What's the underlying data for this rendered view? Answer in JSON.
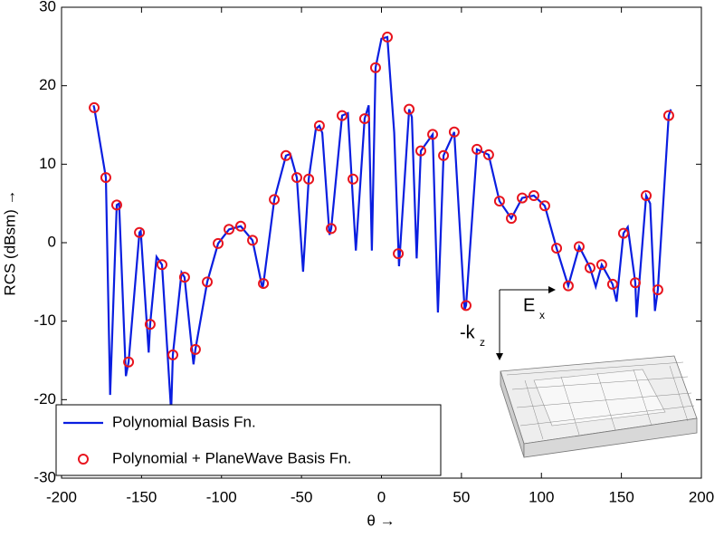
{
  "chart_data": {
    "type": "line",
    "x_label": "θ →",
    "y_label": "RCS (dBsm) →",
    "xlim": [
      -200,
      200
    ],
    "ylim": [
      -30,
      30
    ],
    "xticks": [
      -200,
      -150,
      -100,
      -50,
      0,
      50,
      100,
      150,
      200
    ],
    "yticks": [
      -30,
      -20,
      -10,
      0,
      10,
      20,
      30
    ],
    "legend": "lower left",
    "annotations": [
      {
        "text": "E"
      },
      {
        "text": "x"
      },
      {
        "text": "-k"
      },
      {
        "text": "z"
      }
    ],
    "series": [
      {
        "name": "Polynomial Basis Fn.",
        "type": "line",
        "color": "#0a1ee0",
        "x": [
          -180,
          -179.6,
          -172.3,
          -169.6,
          -165.5,
          -164,
          -159.8,
          -158.1,
          -151.3,
          -150.5,
          -145.5,
          -144.6,
          -140.6,
          -137.2,
          -131.5,
          -130.4,
          -125,
          -123.1,
          -117.5,
          -116.3,
          -108.9,
          -102.1,
          -95.3,
          -88,
          -80.6,
          -74.4,
          -73.8,
          -67,
          -59.7,
          -57,
          -52.9,
          -49,
          -45.5,
          -41,
          -38.8,
          -37,
          -32.5,
          -31.4,
          -24.6,
          -21,
          -16,
          -10.5,
          -8,
          -6,
          -3.7,
          0,
          3.7,
          8,
          11,
          17.3,
          19,
          22,
          24.6,
          32,
          35.3,
          38.8,
          45.5,
          52,
          52.9,
          59.7,
          67,
          73.8,
          81.2,
          88,
          95.3,
          102.1,
          109.5,
          116.8,
          123.6,
          130.4,
          134,
          137.7,
          144.5,
          147,
          151.3,
          154,
          158.7,
          159.5,
          165.5,
          168,
          171,
          172.8,
          179.6,
          181
        ],
        "values": [
          17.5,
          17.2,
          8.3,
          -19.4,
          4.8,
          5,
          -17,
          -15.2,
          1.3,
          1.5,
          -14,
          -10.4,
          -1.8,
          -2.8,
          -21.5,
          -14.3,
          -3.8,
          -4.4,
          -15.5,
          -13.6,
          -5,
          -0.1,
          1.7,
          2.1,
          0.3,
          -5.8,
          -5.2,
          5.5,
          11.1,
          11.3,
          8.3,
          -3.7,
          8.1,
          14.5,
          14.9,
          14,
          1,
          1.8,
          16.2,
          16.5,
          -1,
          15.8,
          17.5,
          -1,
          22.3,
          26,
          26.2,
          14,
          -3,
          17,
          16,
          -2,
          11.7,
          13.8,
          -8.9,
          11.1,
          14.1,
          -8.5,
          -8,
          11.9,
          11.2,
          5.3,
          3.1,
          5.7,
          6,
          4.7,
          -0.7,
          -5.5,
          -0.5,
          -3.2,
          -5.6,
          -2.8,
          -5.3,
          -7.5,
          1.2,
          2,
          -5.1,
          -9.5,
          6,
          5,
          -8.7,
          -6,
          16.2,
          17
        ]
      },
      {
        "name": "Polynomial + PlaneWave Basis Fn.",
        "type": "scatter",
        "color": "#e8141e",
        "x": [
          -179.6,
          -172.3,
          -165.5,
          -158.1,
          -151.3,
          -144.6,
          -137.2,
          -130.4,
          -123.1,
          -116.3,
          -108.9,
          -102.1,
          -95.3,
          -88,
          -80.6,
          -73.8,
          -67,
          -59.7,
          -52.9,
          -45.5,
          -38.8,
          -31.4,
          -24.6,
          -17.8,
          -10.5,
          -3.7,
          3.7,
          10.5,
          17.3,
          24.6,
          32,
          38.8,
          45.5,
          52.9,
          59.7,
          67,
          73.8,
          81.2,
          88,
          95.3,
          102.1,
          109.5,
          116.8,
          123.6,
          130.4,
          137.7,
          144.5,
          151.3,
          158.7,
          165.5,
          172.8,
          179.6
        ],
        "values": [
          17.2,
          8.3,
          4.8,
          -15.2,
          1.3,
          -10.4,
          -2.8,
          -14.3,
          -4.4,
          -13.6,
          -5,
          -0.1,
          1.7,
          2.1,
          0.3,
          -5.2,
          5.5,
          11.1,
          8.3,
          8.1,
          14.9,
          1.8,
          16.2,
          8.1,
          15.8,
          22.3,
          26.2,
          -1.4,
          17,
          11.7,
          13.8,
          11.1,
          14.1,
          -8,
          11.9,
          11.2,
          5.3,
          3.1,
          5.7,
          6,
          4.7,
          -0.7,
          -5.5,
          -0.5,
          -3.2,
          -2.8,
          -5.3,
          1.2,
          -5.1,
          6,
          -6,
          16.2
        ]
      }
    ]
  }
}
